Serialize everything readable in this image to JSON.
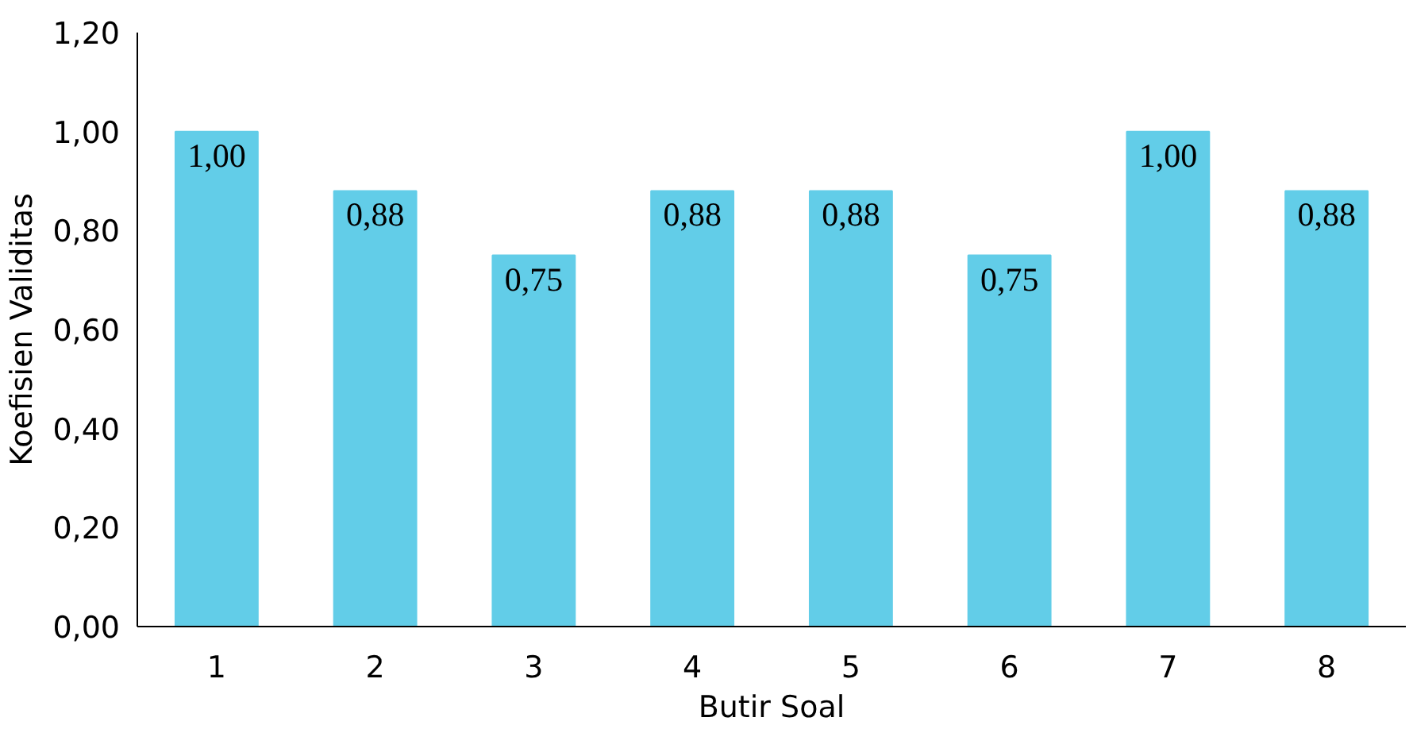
{
  "chart_data": {
    "type": "bar",
    "xlabel": "Butir Soal",
    "ylabel": "Koefisien Validitas",
    "categories": [
      "1",
      "2",
      "3",
      "4",
      "5",
      "6",
      "7",
      "8"
    ],
    "values": [
      1.0,
      0.88,
      0.75,
      0.88,
      0.88,
      0.75,
      1.0,
      0.88
    ],
    "value_labels": [
      "1,00",
      "0,88",
      "0,75",
      "0,88",
      "0,88",
      "0,75",
      "1,00",
      "0,88"
    ],
    "color": "#62cde8",
    "ylim": [
      0,
      1.2
    ],
    "yticks": [
      {
        "value": 0,
        "label": "0,00"
      },
      {
        "value": 0.2,
        "label": "0,20"
      },
      {
        "value": 0.4,
        "label": "0,40"
      },
      {
        "value": 0.6,
        "label": "0,60"
      },
      {
        "value": 0.8,
        "label": "0,80"
      },
      {
        "value": 1.0,
        "label": "1,00"
      },
      {
        "value": 1.2,
        "label": "1,20"
      }
    ],
    "grid": false
  }
}
